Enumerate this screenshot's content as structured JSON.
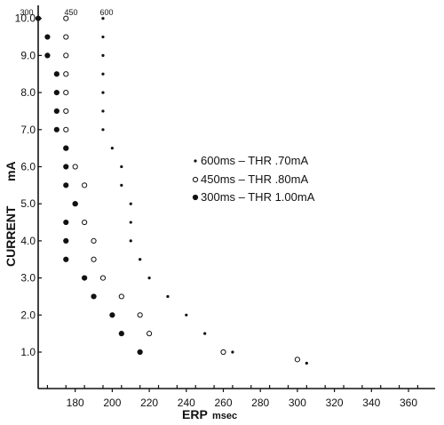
{
  "chart_data": {
    "type": "scatter",
    "title": "",
    "xlabel": "ERP",
    "xunit": "msec",
    "ylabel": "CURRENT",
    "yunit": "mA",
    "xlim": [
      160,
      370
    ],
    "ylim": [
      0,
      10.4
    ],
    "x_ticks": [
      180,
      200,
      220,
      240,
      260,
      280,
      300,
      320,
      340,
      360
    ],
    "y_ticks": [
      1.0,
      2.0,
      3.0,
      4.0,
      5.0,
      6.0,
      7.0,
      8.0,
      9.0,
      10.0
    ],
    "grid": false,
    "legend_position": "right-middle",
    "series": [
      {
        "name": "600ms – THR .70mA",
        "top_label": "600",
        "marker": "small-dot",
        "points": [
          [
            195,
            10.0
          ],
          [
            195,
            9.5
          ],
          [
            195,
            9.0
          ],
          [
            195,
            8.5
          ],
          [
            195,
            8.0
          ],
          [
            195,
            7.5
          ],
          [
            195,
            7.0
          ],
          [
            200,
            6.5
          ],
          [
            205,
            6.0
          ],
          [
            205,
            5.5
          ],
          [
            210,
            5.0
          ],
          [
            210,
            4.5
          ],
          [
            210,
            4.0
          ],
          [
            215,
            3.5
          ],
          [
            220,
            3.0
          ],
          [
            230,
            2.5
          ],
          [
            240,
            2.0
          ],
          [
            250,
            1.5
          ],
          [
            265,
            1.0
          ],
          [
            305,
            0.7
          ]
        ]
      },
      {
        "name": "450ms – THR .80mA",
        "top_label": "450",
        "marker": "open-circle",
        "points": [
          [
            175,
            10.0
          ],
          [
            175,
            9.5
          ],
          [
            175,
            9.0
          ],
          [
            175,
            8.5
          ],
          [
            175,
            8.0
          ],
          [
            175,
            7.5
          ],
          [
            175,
            7.0
          ],
          [
            175,
            6.5
          ],
          [
            180,
            6.0
          ],
          [
            185,
            5.5
          ],
          [
            180,
            5.0
          ],
          [
            185,
            4.5
          ],
          [
            190,
            4.0
          ],
          [
            190,
            3.5
          ],
          [
            195,
            3.0
          ],
          [
            205,
            2.5
          ],
          [
            215,
            2.0
          ],
          [
            220,
            1.5
          ],
          [
            260,
            1.0
          ],
          [
            300,
            0.8
          ]
        ]
      },
      {
        "name": "300ms – THR 1.00mA",
        "top_label": "300",
        "marker": "filled-dot",
        "points": [
          [
            160,
            10.0
          ],
          [
            165,
            9.5
          ],
          [
            165,
            9.0
          ],
          [
            170,
            8.5
          ],
          [
            170,
            8.0
          ],
          [
            170,
            7.5
          ],
          [
            170,
            7.0
          ],
          [
            175,
            6.5
          ],
          [
            175,
            6.0
          ],
          [
            175,
            5.5
          ],
          [
            180,
            5.0
          ],
          [
            175,
            4.5
          ],
          [
            175,
            4.0
          ],
          [
            175,
            3.5
          ],
          [
            185,
            3.0
          ],
          [
            190,
            2.5
          ],
          [
            200,
            2.0
          ],
          [
            205,
            1.5
          ],
          [
            215,
            1.0
          ]
        ]
      }
    ]
  }
}
